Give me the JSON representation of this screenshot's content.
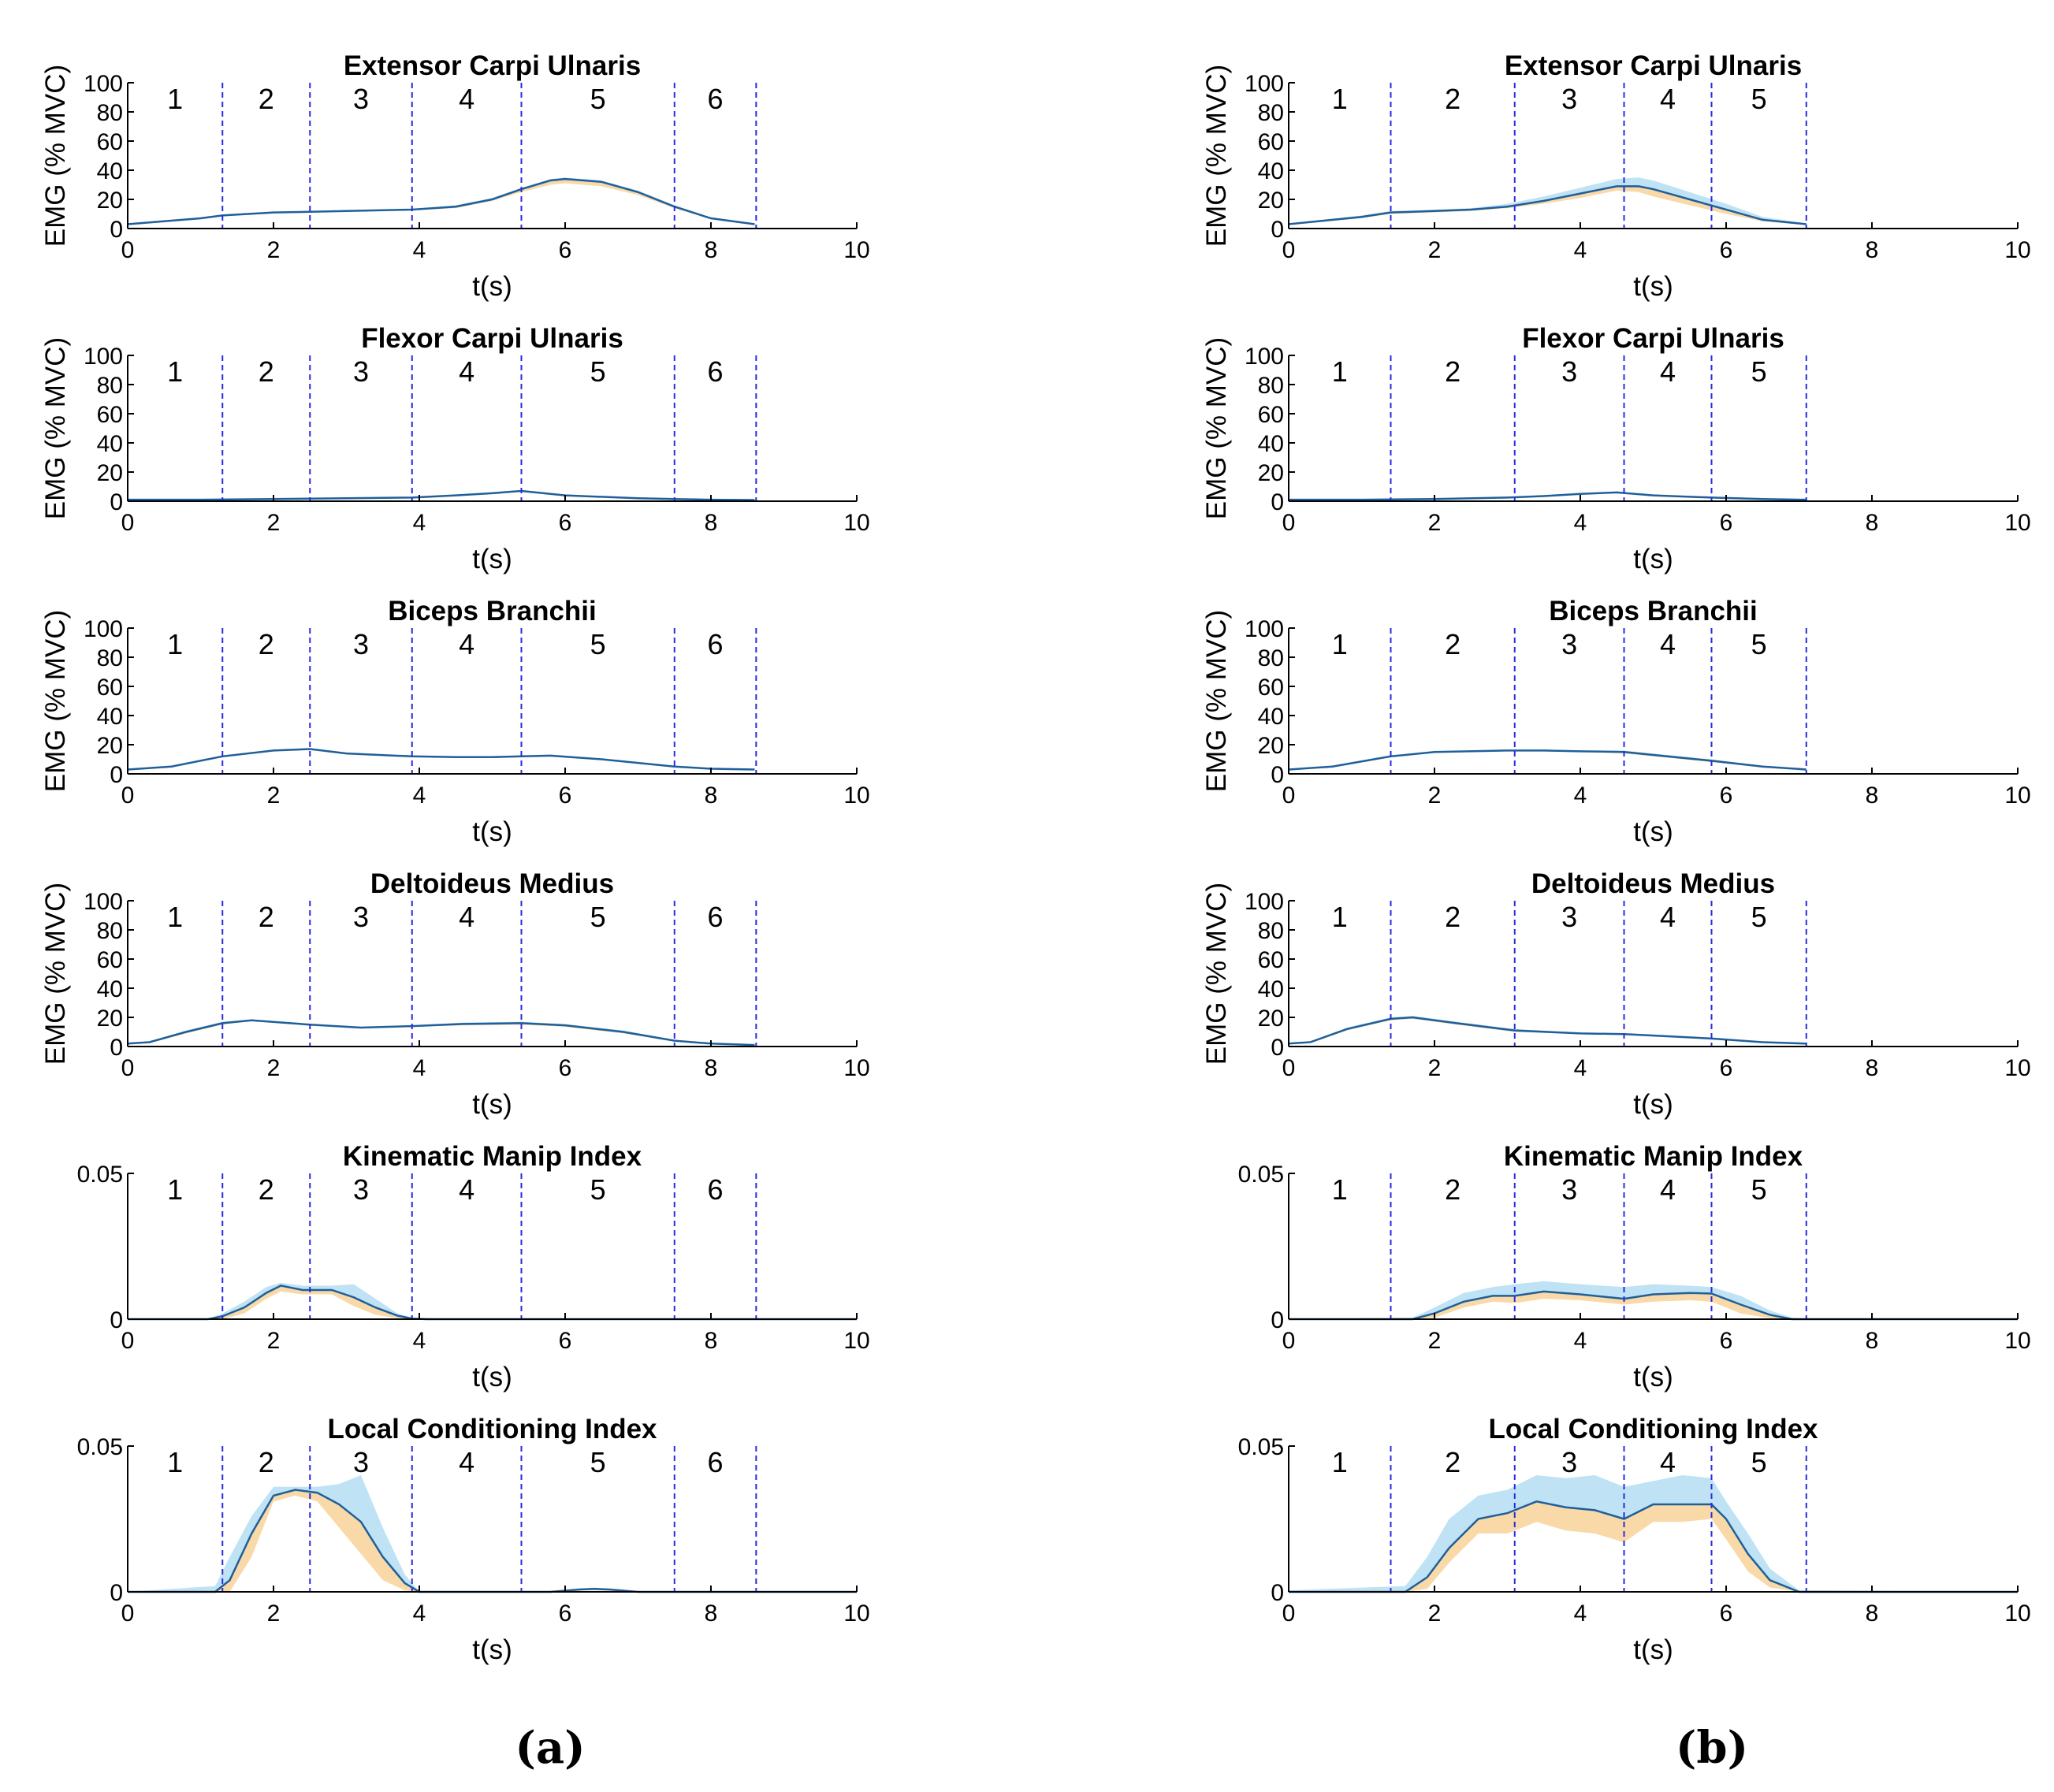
{
  "colors": {
    "line": "#1f5f9a",
    "band_upper": "#bfe3f5",
    "band_lower": "#f9d9a8",
    "divider": "#2a2ae0",
    "axis": "#000000"
  },
  "panels": [
    {
      "label": "(a)",
      "phases": [
        "1",
        "2",
        "3",
        "4",
        "5",
        "6"
      ],
      "dividers": [
        1.3,
        2.5,
        3.9,
        5.4,
        7.5,
        8.62
      ]
    },
    {
      "label": "(b)",
      "phases": [
        "1",
        "2",
        "3",
        "4",
        "5"
      ],
      "dividers": [
        1.4,
        3.1,
        4.6,
        5.8,
        7.1
      ]
    }
  ],
  "chart_data": [
    {
      "type": "line",
      "panel": "a",
      "title": "Extensor Carpi Ulnaris",
      "xlabel": "t(s)",
      "ylabel": "EMG (% MVC)",
      "xlim": [
        0,
        10
      ],
      "ylim": [
        0,
        100
      ],
      "xticks": [
        "0",
        "2",
        "4",
        "6",
        "8",
        "10"
      ],
      "yticks": [
        "0",
        "20",
        "40",
        "60",
        "80",
        "100"
      ],
      "x": [
        0,
        1,
        1.3,
        2,
        2.5,
        3,
        3.9,
        4.5,
        5,
        5.4,
        5.8,
        6,
        6.5,
        7,
        7.5,
        8,
        8.6
      ],
      "mean": [
        3,
        7,
        9,
        11,
        11.5,
        12,
        13,
        15,
        20,
        27,
        33,
        34,
        32,
        25,
        15,
        7,
        3
      ],
      "upper": [
        3.3,
        7.5,
        9.5,
        11.5,
        12,
        12.5,
        13.5,
        16,
        21,
        28,
        34,
        35,
        33,
        26,
        16,
        7.5,
        3.3
      ],
      "lower": [
        2.7,
        6.5,
        8.5,
        10.5,
        11,
        11.5,
        12.5,
        14,
        19,
        25,
        30,
        31,
        29,
        23,
        14,
        6.5,
        2.7
      ]
    },
    {
      "type": "line",
      "panel": "b",
      "title": "Extensor Carpi Ulnaris",
      "xlabel": "t(s)",
      "ylabel": "EMG (% MVC)",
      "xlim": [
        0,
        10
      ],
      "ylim": [
        0,
        100
      ],
      "xticks": [
        "0",
        "2",
        "4",
        "6",
        "8",
        "10"
      ],
      "yticks": [
        "0",
        "20",
        "40",
        "60",
        "80",
        "100"
      ],
      "x": [
        0,
        1,
        1.4,
        2,
        2.5,
        3,
        3.5,
        4,
        4.5,
        4.8,
        5,
        5.5,
        6,
        6.5,
        7.1
      ],
      "mean": [
        3,
        8,
        11,
        12,
        13,
        15,
        19,
        24,
        29,
        29,
        27,
        20,
        13,
        6,
        3
      ],
      "upper": [
        3.5,
        9,
        12,
        13,
        14,
        17,
        22,
        28,
        34,
        35,
        33,
        25,
        17,
        8,
        3.5
      ],
      "lower": [
        2.5,
        7,
        10,
        11,
        12,
        14,
        17,
        21,
        26,
        25,
        22,
        16,
        10,
        5,
        2.5
      ]
    },
    {
      "type": "line",
      "panel": "a",
      "title": "Flexor Carpi Ulnaris",
      "xlabel": "t(s)",
      "ylabel": "EMG (% MVC)",
      "xlim": [
        0,
        10
      ],
      "ylim": [
        0,
        100
      ],
      "xticks": [
        "0",
        "2",
        "4",
        "6",
        "8",
        "10"
      ],
      "yticks": [
        "0",
        "20",
        "40",
        "60",
        "80",
        "100"
      ],
      "x": [
        0,
        1,
        2,
        3,
        3.9,
        4.5,
        5,
        5.4,
        6,
        7,
        7.5,
        8,
        8.6
      ],
      "mean": [
        1,
        1,
        1.5,
        2,
        2.5,
        4,
        5.5,
        7,
        4,
        2,
        1.5,
        1,
        0.8
      ],
      "upper": [
        1.3,
        1.3,
        1.8,
        2.3,
        2.8,
        4.5,
        6,
        7.5,
        4.5,
        2.3,
        1.8,
        1.3,
        1
      ],
      "lower": [
        0.7,
        0.7,
        1.2,
        1.7,
        2.2,
        3.5,
        5,
        6.5,
        3.5,
        1.7,
        1.2,
        0.7,
        0.6
      ]
    },
    {
      "type": "line",
      "panel": "b",
      "title": "Flexor Carpi Ulnaris",
      "xlabel": "t(s)",
      "ylabel": "EMG (% MVC)",
      "xlim": [
        0,
        10
      ],
      "ylim": [
        0,
        100
      ],
      "xticks": [
        "0",
        "2",
        "4",
        "6",
        "8",
        "10"
      ],
      "yticks": [
        "0",
        "20",
        "40",
        "60",
        "80",
        "100"
      ],
      "x": [
        0,
        1,
        2,
        3,
        3.5,
        4,
        4.5,
        5,
        5.8,
        6.5,
        7.1
      ],
      "mean": [
        1,
        1,
        1.5,
        2.5,
        3.5,
        5,
        6,
        4,
        2.5,
        1.5,
        1
      ],
      "upper": [
        1.3,
        1.3,
        1.8,
        2.8,
        4,
        5.5,
        6.5,
        4.5,
        2.8,
        1.8,
        1.2
      ],
      "lower": [
        0.7,
        0.7,
        1.2,
        2.2,
        3,
        4.5,
        5.5,
        3.5,
        2.2,
        1.2,
        0.8
      ]
    },
    {
      "type": "line",
      "panel": "a",
      "title": "Biceps Branchii",
      "xlabel": "t(s)",
      "ylabel": "EMG (% MVC)",
      "xlim": [
        0,
        10
      ],
      "ylim": [
        0,
        100
      ],
      "xticks": [
        "0",
        "2",
        "4",
        "6",
        "8",
        "10"
      ],
      "yticks": [
        "0",
        "20",
        "40",
        "60",
        "80",
        "100"
      ],
      "x": [
        0,
        0.6,
        1.3,
        2,
        2.5,
        3,
        3.9,
        4.5,
        5,
        5.4,
        5.8,
        6.5,
        7.5,
        8,
        8.6
      ],
      "mean": [
        3,
        5,
        12,
        16,
        17,
        14,
        12,
        11.5,
        11.5,
        12,
        12.5,
        10,
        5,
        3.5,
        3
      ],
      "upper": [
        3.3,
        5.5,
        12.5,
        16.5,
        17.5,
        14.5,
        12.5,
        12,
        12,
        12.5,
        13,
        10.5,
        5.5,
        4,
        3.3
      ],
      "lower": [
        2.7,
        4.5,
        11.5,
        15.5,
        16.5,
        13.5,
        11.5,
        11,
        11,
        11.5,
        12,
        9.5,
        4.5,
        3,
        2.7
      ]
    },
    {
      "type": "line",
      "panel": "b",
      "title": "Biceps Branchii",
      "xlabel": "t(s)",
      "ylabel": "EMG (% MVC)",
      "xlim": [
        0,
        10
      ],
      "ylim": [
        0,
        100
      ],
      "xticks": [
        "0",
        "2",
        "4",
        "6",
        "8",
        "10"
      ],
      "yticks": [
        "0",
        "20",
        "40",
        "60",
        "80",
        "100"
      ],
      "x": [
        0,
        0.6,
        1.4,
        2,
        3,
        3.5,
        4,
        4.6,
        5,
        5.8,
        6.5,
        7.1
      ],
      "mean": [
        3,
        5,
        12,
        15,
        16,
        16,
        15.5,
        15,
        13,
        9,
        5,
        3
      ],
      "upper": [
        3.3,
        5.5,
        12.5,
        15.5,
        16.5,
        16.5,
        16,
        16,
        14,
        10,
        5.5,
        3.3
      ],
      "lower": [
        2.7,
        4.5,
        11.5,
        14.5,
        15.5,
        15.5,
        15,
        14,
        12,
        8,
        4.5,
        2.7
      ]
    },
    {
      "type": "line",
      "panel": "a",
      "title": "Deltoideus Medius",
      "xlabel": "t(s)",
      "ylabel": "EMG (% MVC)",
      "xlim": [
        0,
        10
      ],
      "ylim": [
        0,
        100
      ],
      "xticks": [
        "0",
        "2",
        "4",
        "6",
        "8",
        "10"
      ],
      "yticks": [
        "0",
        "20",
        "40",
        "60",
        "80",
        "100"
      ],
      "x": [
        0,
        0.3,
        0.8,
        1.3,
        1.7,
        2.5,
        3.2,
        3.9,
        4.6,
        5.4,
        6,
        6.8,
        7.5,
        8,
        8.6
      ],
      "mean": [
        2,
        3,
        10,
        16,
        18,
        15,
        13,
        14,
        15.5,
        16,
        14.5,
        10,
        4,
        2,
        1
      ],
      "upper": [
        2.3,
        3.5,
        11,
        17,
        18.5,
        15.5,
        13.5,
        14.5,
        16.5,
        17,
        15.5,
        11,
        4.5,
        2.3,
        1.2
      ],
      "lower": [
        1.7,
        2.5,
        9,
        15,
        17.5,
        14.5,
        12.5,
        13.5,
        14.5,
        15,
        13.5,
        9,
        3.5,
        1.7,
        0.8
      ]
    },
    {
      "type": "line",
      "panel": "b",
      "title": "Deltoideus Medius",
      "xlabel": "t(s)",
      "ylabel": "EMG (% MVC)",
      "xlim": [
        0,
        10
      ],
      "ylim": [
        0,
        100
      ],
      "xticks": [
        "0",
        "2",
        "4",
        "6",
        "8",
        "10"
      ],
      "yticks": [
        "0",
        "20",
        "40",
        "60",
        "80",
        "100"
      ],
      "x": [
        0,
        0.3,
        0.8,
        1.4,
        1.7,
        2.3,
        3.1,
        4,
        4.6,
        5.2,
        5.8,
        6.5,
        7.1
      ],
      "mean": [
        2,
        3,
        12,
        19,
        20,
        16,
        11,
        9,
        8.5,
        7,
        5.5,
        3,
        2
      ],
      "upper": [
        2.3,
        3.5,
        13,
        20,
        21,
        17,
        12,
        9.5,
        9,
        7.5,
        6,
        3.3,
        2.3
      ],
      "lower": [
        1.7,
        2.5,
        11,
        18,
        19,
        15,
        10,
        8.5,
        8,
        6.5,
        5,
        2.7,
        1.7
      ]
    },
    {
      "type": "line",
      "panel": "a",
      "title": "Kinematic Manip Index",
      "xlabel": "t(s)",
      "ylabel": "",
      "xlim": [
        0,
        10
      ],
      "ylim": [
        0,
        0.05
      ],
      "xticks": [
        "0",
        "2",
        "4",
        "6",
        "8",
        "10"
      ],
      "yticks": [
        "0",
        "0.05"
      ],
      "x": [
        0,
        1.1,
        1.3,
        1.6,
        1.9,
        2.1,
        2.4,
        2.8,
        3.1,
        3.4,
        3.7,
        3.9,
        4.1,
        10
      ],
      "mean": [
        0,
        0,
        0.001,
        0.004,
        0.009,
        0.0115,
        0.01,
        0.01,
        0.0075,
        0.004,
        0.0012,
        0.0002,
        0,
        0
      ],
      "upper": [
        0,
        0,
        0.002,
        0.006,
        0.011,
        0.0125,
        0.0115,
        0.0115,
        0.012,
        0.007,
        0.002,
        0.0004,
        0,
        0
      ],
      "lower": [
        0,
        0,
        0,
        0.002,
        0.007,
        0.0095,
        0.0085,
        0.0085,
        0.0045,
        0.0015,
        0.0003,
        0,
        0,
        0
      ]
    },
    {
      "type": "line",
      "panel": "b",
      "title": "Kinematic Manip Index",
      "xlabel": "t(s)",
      "ylabel": "",
      "xlim": [
        0,
        10
      ],
      "ylim": [
        0,
        0.05
      ],
      "xticks": [
        "0",
        "2",
        "4",
        "6",
        "8",
        "10"
      ],
      "yticks": [
        "0",
        "0.05"
      ],
      "x": [
        0,
        1.7,
        2,
        2.4,
        2.8,
        3.1,
        3.5,
        4,
        4.6,
        5,
        5.5,
        5.8,
        6.2,
        6.6,
        6.9,
        7.1,
        10
      ],
      "mean": [
        0,
        0,
        0.002,
        0.006,
        0.008,
        0.008,
        0.0095,
        0.0085,
        0.007,
        0.0085,
        0.009,
        0.0088,
        0.005,
        0.0015,
        0,
        0,
        0
      ],
      "upper": [
        0,
        0.0005,
        0.004,
        0.009,
        0.011,
        0.012,
        0.013,
        0.012,
        0.011,
        0.012,
        0.0115,
        0.011,
        0.008,
        0.003,
        0.0005,
        0,
        0
      ],
      "lower": [
        0,
        0,
        0.0005,
        0.004,
        0.006,
        0.0055,
        0.007,
        0.0065,
        0.005,
        0.006,
        0.0065,
        0.006,
        0.002,
        0.0003,
        0,
        0,
        0
      ]
    },
    {
      "type": "line",
      "panel": "a",
      "title": "Local Conditioning Index",
      "xlabel": "t(s)",
      "ylabel": "",
      "xlim": [
        0,
        10
      ],
      "ylim": [
        0,
        0.05
      ],
      "xticks": [
        "0",
        "2",
        "4",
        "6",
        "8",
        "10"
      ],
      "yticks": [
        "0",
        "0.05"
      ],
      "x": [
        0,
        1.2,
        1.4,
        1.7,
        2,
        2.3,
        2.6,
        2.9,
        3.2,
        3.5,
        3.8,
        4,
        5.8,
        6.2,
        6.4,
        6.6,
        7,
        10
      ],
      "mean": [
        0,
        0,
        0.004,
        0.02,
        0.033,
        0.035,
        0.034,
        0.03,
        0.024,
        0.012,
        0.003,
        0,
        0,
        0.0008,
        0.001,
        0.0008,
        0,
        0
      ],
      "upper": [
        0,
        0.002,
        0.012,
        0.026,
        0.036,
        0.036,
        0.036,
        0.037,
        0.04,
        0.022,
        0.006,
        0,
        0,
        0.001,
        0.0015,
        0.001,
        0,
        0
      ],
      "lower": [
        0,
        0,
        0,
        0.012,
        0.031,
        0.033,
        0.031,
        0.022,
        0.013,
        0.004,
        0.0005,
        0,
        0,
        0.0004,
        0.0006,
        0.0004,
        0,
        0
      ]
    },
    {
      "type": "line",
      "panel": "b",
      "title": "Local Conditioning Index",
      "xlabel": "t(s)",
      "ylabel": "",
      "xlim": [
        0,
        10
      ],
      "ylim": [
        0,
        0.05
      ],
      "xticks": [
        "0",
        "2",
        "4",
        "6",
        "8",
        "10"
      ],
      "yticks": [
        "0",
        "0.05"
      ],
      "x": [
        0,
        1.6,
        1.9,
        2.2,
        2.6,
        3,
        3.4,
        3.8,
        4.2,
        4.6,
        5,
        5.4,
        5.8,
        6,
        6.3,
        6.6,
        7,
        10
      ],
      "mean": [
        0,
        0,
        0.005,
        0.015,
        0.025,
        0.027,
        0.031,
        0.029,
        0.028,
        0.025,
        0.03,
        0.03,
        0.03,
        0.025,
        0.013,
        0.004,
        0,
        0
      ],
      "upper": [
        0.0005,
        0.002,
        0.012,
        0.025,
        0.033,
        0.035,
        0.04,
        0.039,
        0.04,
        0.036,
        0.038,
        0.04,
        0.039,
        0.031,
        0.02,
        0.008,
        0.0005,
        0
      ],
      "lower": [
        0,
        0,
        0.001,
        0.01,
        0.02,
        0.02,
        0.024,
        0.021,
        0.02,
        0.017,
        0.024,
        0.024,
        0.025,
        0.018,
        0.007,
        0.0015,
        0,
        0
      ]
    }
  ]
}
